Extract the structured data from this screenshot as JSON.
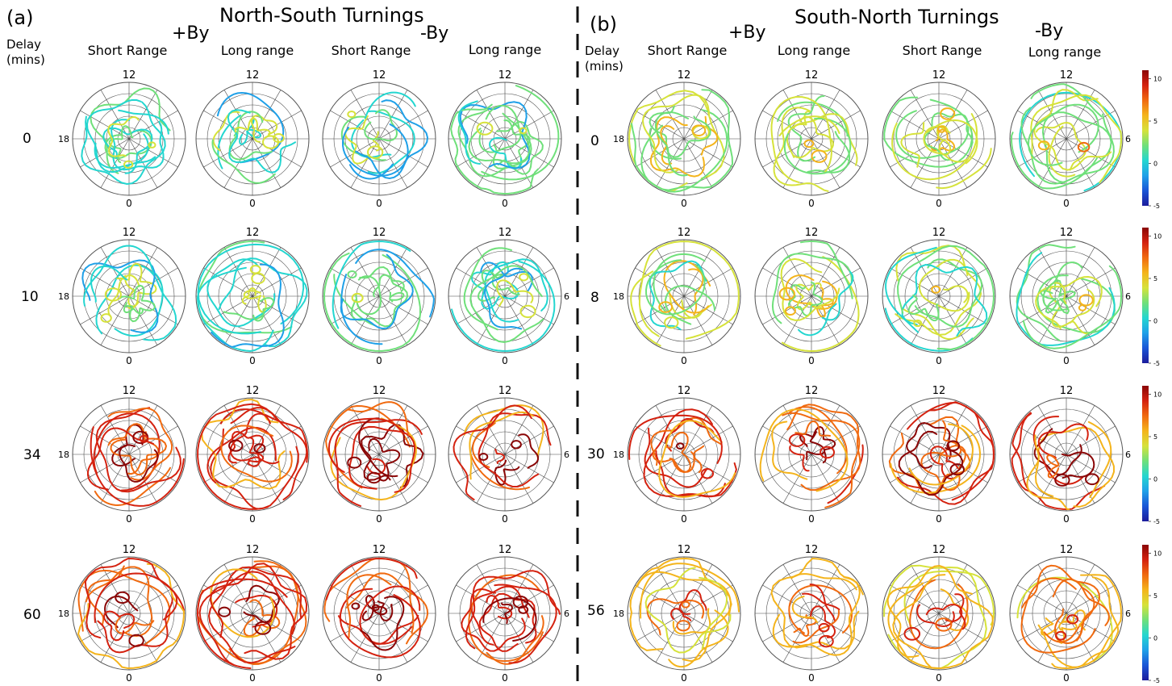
{
  "figure": {
    "panel_a": {
      "letter": "(a)",
      "title": "North-South Turnings",
      "by_pos": "+By",
      "by_neg": "-By",
      "delay_label_1": "Delay",
      "delay_label_2": "(mins)",
      "column_labels": [
        "Short Range",
        "Long range",
        "Short Range",
        "Long range"
      ],
      "delays": [
        "0",
        "10",
        "34",
        "60"
      ]
    },
    "panel_b": {
      "letter": "(b)",
      "title": "South-North Turnings",
      "by_pos": "+By",
      "by_neg": "-By",
      "delay_label_1": "Delay",
      "delay_label_2": "(mins)",
      "column_labels": [
        "Short Range",
        "Long range",
        "Short Range",
        "Long range"
      ],
      "delays": [
        "0",
        "8",
        "30",
        "56"
      ]
    },
    "mlt_labels": {
      "top": "12",
      "bottom": "0",
      "left": "18",
      "right": "6"
    }
  },
  "chart_data": {
    "type": "heatmap",
    "description_words": "polar dial plots (magnetic local time) with colored contour lines",
    "colorbar": {
      "ticks": [
        "10",
        "5",
        "0",
        "-5"
      ],
      "vmin": -5,
      "vmax": 11,
      "colors": [
        "#1c1c9c",
        "#1a55d6",
        "#1fa0e8",
        "#24d6d0",
        "#6fe07a",
        "#d6e23a",
        "#f4b41c",
        "#f06a10",
        "#d42210",
        "#8a0606"
      ]
    },
    "rows": {
      "panel_a_levels": [
        1.2,
        1.0,
        8.3,
        8.6
      ],
      "panel_b_levels": [
        3.2,
        2.6,
        8.0,
        6.2
      ]
    },
    "grid": "on",
    "rings": 5,
    "spokes": 12
  }
}
